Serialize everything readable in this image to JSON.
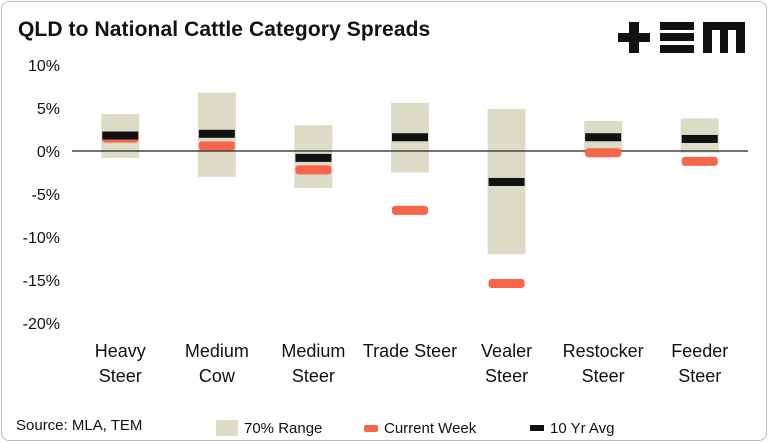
{
  "title": "QLD to National Cattle Category Spreads",
  "logo_text": "+EM",
  "source": "Source: MLA, TEM",
  "colors": {
    "range": "#dcdcc6",
    "current": "#f8654a",
    "avg": "#111111",
    "axis": "#222222"
  },
  "chart_data": {
    "type": "bar",
    "categories": [
      [
        "Heavy",
        "Steer"
      ],
      [
        "Medium",
        "Cow"
      ],
      [
        "Medium",
        "Steer"
      ],
      [
        "Trade Steer",
        ""
      ],
      [
        "Vealer",
        "Steer"
      ],
      [
        "Restocker",
        "Steer"
      ],
      [
        "Feeder",
        "Steer"
      ]
    ],
    "ylim": [
      -20,
      10
    ],
    "yticks": [
      10,
      5,
      0,
      -5,
      -10,
      -15,
      -20
    ],
    "ytick_labels": [
      "10%",
      "5%",
      "0%",
      "-5%",
      "-10%",
      "-15%",
      "-20%"
    ],
    "series": [
      {
        "name": "70% Range",
        "type": "floating-bar",
        "low": [
          -0.8,
          -3.0,
          -4.3,
          -2.5,
          -12.0,
          -0.3,
          -0.2
        ],
        "high": [
          4.3,
          6.8,
          3.0,
          5.6,
          4.9,
          3.5,
          3.8
        ]
      },
      {
        "name": "Current Week",
        "type": "marker",
        "values": [
          1.5,
          0.6,
          -2.2,
          -6.9,
          -15.4,
          -0.2,
          -1.2
        ]
      },
      {
        "name": "10 Yr Avg",
        "type": "marker",
        "values": [
          1.8,
          2.0,
          -0.8,
          1.6,
          -3.6,
          1.6,
          1.4
        ]
      }
    ],
    "legend_position": "bottom",
    "grid": false
  },
  "legend": {
    "range": "70% Range",
    "current": "Current Week",
    "avg": "10 Yr Avg"
  }
}
